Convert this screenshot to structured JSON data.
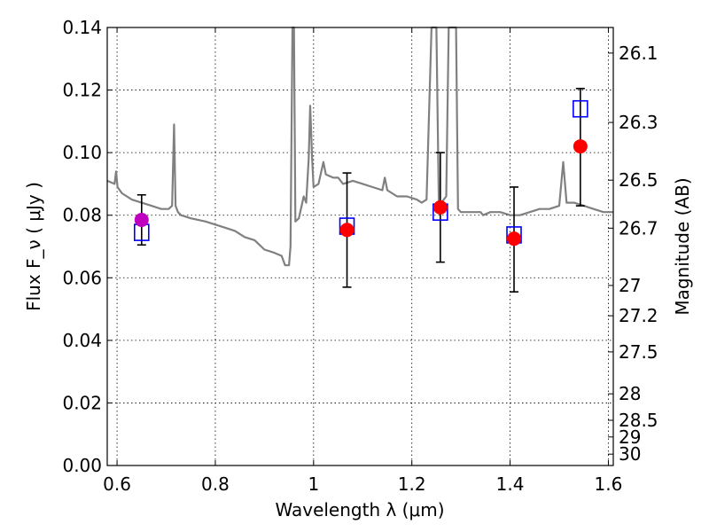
{
  "chart_data": {
    "type": "scatter",
    "xlabel": "Wavelength  λ (μm)",
    "ylabel": "Flux  F_ν  ( μJy )",
    "y2label": "Magnitude (AB)",
    "xlim": [
      0.58,
      1.61
    ],
    "ylim": [
      0.0,
      0.14
    ],
    "grid": true,
    "x_ticks": [
      {
        "value": 0.6,
        "label": "0.6"
      },
      {
        "value": 0.8,
        "label": "0.8"
      },
      {
        "value": 1.0,
        "label": "1"
      },
      {
        "value": 1.2,
        "label": "1.2"
      },
      {
        "value": 1.4,
        "label": "1.4"
      },
      {
        "value": 1.6,
        "label": "1.6"
      }
    ],
    "y_ticks": [
      {
        "value": 0.0,
        "label": "0.00"
      },
      {
        "value": 0.02,
        "label": "0.02"
      },
      {
        "value": 0.04,
        "label": "0.04"
      },
      {
        "value": 0.06,
        "label": "0.06"
      },
      {
        "value": 0.08,
        "label": "0.08"
      },
      {
        "value": 0.1,
        "label": "0.10"
      },
      {
        "value": 0.12,
        "label": "0.12"
      },
      {
        "value": 0.14,
        "label": "0.14"
      }
    ],
    "mag_ticks": [
      {
        "value": 26.1,
        "label": "26.1"
      },
      {
        "value": 26.3,
        "label": "26.3"
      },
      {
        "value": 26.5,
        "label": "26.5"
      },
      {
        "value": 26.7,
        "label": "26.7"
      },
      {
        "value": 27.0,
        "label": "27"
      },
      {
        "value": 27.2,
        "label": "27.2"
      },
      {
        "value": 27.5,
        "label": "27.5"
      },
      {
        "value": 28.0,
        "label": "28"
      },
      {
        "value": 28.5,
        "label": "28.5"
      },
      {
        "value": 29.0,
        "label": "29"
      },
      {
        "value": 30.0,
        "label": "30"
      }
    ],
    "spectrum": {
      "color": "#808080",
      "points": [
        [
          0.58,
          0.091
        ],
        [
          0.595,
          0.09
        ],
        [
          0.598,
          0.094
        ],
        [
          0.601,
          0.089
        ],
        [
          0.61,
          0.087
        ],
        [
          0.62,
          0.086
        ],
        [
          0.63,
          0.085
        ],
        [
          0.65,
          0.084
        ],
        [
          0.67,
          0.083
        ],
        [
          0.69,
          0.082
        ],
        [
          0.705,
          0.082
        ],
        [
          0.712,
          0.083
        ],
        [
          0.716,
          0.109
        ],
        [
          0.719,
          0.083
        ],
        [
          0.724,
          0.081
        ],
        [
          0.73,
          0.08
        ],
        [
          0.75,
          0.079
        ],
        [
          0.78,
          0.078
        ],
        [
          0.8,
          0.077
        ],
        [
          0.82,
          0.076
        ],
        [
          0.84,
          0.075
        ],
        [
          0.86,
          0.073
        ],
        [
          0.88,
          0.072
        ],
        [
          0.9,
          0.069
        ],
        [
          0.92,
          0.068
        ],
        [
          0.935,
          0.067
        ],
        [
          0.942,
          0.064
        ],
        [
          0.95,
          0.064
        ],
        [
          0.953,
          0.07
        ],
        [
          0.957,
          0.14
        ],
        [
          0.96,
          0.14
        ],
        [
          0.963,
          0.078
        ],
        [
          0.97,
          0.079
        ],
        [
          0.98,
          0.086
        ],
        [
          0.985,
          0.084
        ],
        [
          0.99,
          0.098
        ],
        [
          0.993,
          0.115
        ],
        [
          0.997,
          0.098
        ],
        [
          1.0,
          0.089
        ],
        [
          1.01,
          0.09
        ],
        [
          1.02,
          0.097
        ],
        [
          1.025,
          0.093
        ],
        [
          1.04,
          0.092
        ],
        [
          1.05,
          0.092
        ],
        [
          1.06,
          0.09
        ],
        [
          1.08,
          0.091
        ],
        [
          1.1,
          0.09
        ],
        [
          1.12,
          0.089
        ],
        [
          1.14,
          0.088
        ],
        [
          1.145,
          0.092
        ],
        [
          1.15,
          0.088
        ],
        [
          1.17,
          0.086
        ],
        [
          1.19,
          0.086
        ],
        [
          1.21,
          0.085
        ],
        [
          1.22,
          0.084
        ],
        [
          1.23,
          0.085
        ],
        [
          1.24,
          0.14
        ],
        [
          1.25,
          0.14
        ],
        [
          1.255,
          0.083
        ],
        [
          1.26,
          0.084
        ],
        [
          1.27,
          0.086
        ],
        [
          1.275,
          0.14
        ],
        [
          1.29,
          0.14
        ],
        [
          1.294,
          0.082
        ],
        [
          1.3,
          0.081
        ],
        [
          1.32,
          0.081
        ],
        [
          1.34,
          0.081
        ],
        [
          1.345,
          0.08
        ],
        [
          1.36,
          0.081
        ],
        [
          1.38,
          0.081
        ],
        [
          1.4,
          0.08
        ],
        [
          1.42,
          0.08
        ],
        [
          1.44,
          0.081
        ],
        [
          1.46,
          0.082
        ],
        [
          1.48,
          0.082
        ],
        [
          1.5,
          0.083
        ],
        [
          1.508,
          0.097
        ],
        [
          1.515,
          0.084
        ],
        [
          1.53,
          0.084
        ],
        [
          1.55,
          0.083
        ],
        [
          1.57,
          0.082
        ],
        [
          1.59,
          0.081
        ],
        [
          1.6,
          0.081
        ],
        [
          1.61,
          0.081
        ]
      ]
    },
    "model_points": {
      "marker": "open-square",
      "color": "#0000ff",
      "points": [
        {
          "x": 0.65,
          "y": 0.0745
        },
        {
          "x": 1.068,
          "y": 0.0765
        },
        {
          "x": 1.258,
          "y": 0.081
        },
        {
          "x": 1.408,
          "y": 0.0737
        },
        {
          "x": 1.543,
          "y": 0.114
        }
      ]
    },
    "observed_points": {
      "marker": "filled-circle",
      "points": [
        {
          "x": 0.65,
          "y": 0.0785,
          "err_low": 0.0705,
          "err_high": 0.0865,
          "color": "#bf00bf"
        },
        {
          "x": 1.068,
          "y": 0.0753,
          "err_low": 0.057,
          "err_high": 0.0935,
          "color": "#ff0000"
        },
        {
          "x": 1.258,
          "y": 0.0825,
          "err_low": 0.065,
          "err_high": 0.1,
          "color": "#ff0000"
        },
        {
          "x": 1.408,
          "y": 0.0725,
          "err_low": 0.0555,
          "err_high": 0.089,
          "color": "#ff0000"
        },
        {
          "x": 1.543,
          "y": 0.102,
          "err_low": 0.083,
          "err_high": 0.1205,
          "color": "#ff0000"
        }
      ]
    }
  }
}
